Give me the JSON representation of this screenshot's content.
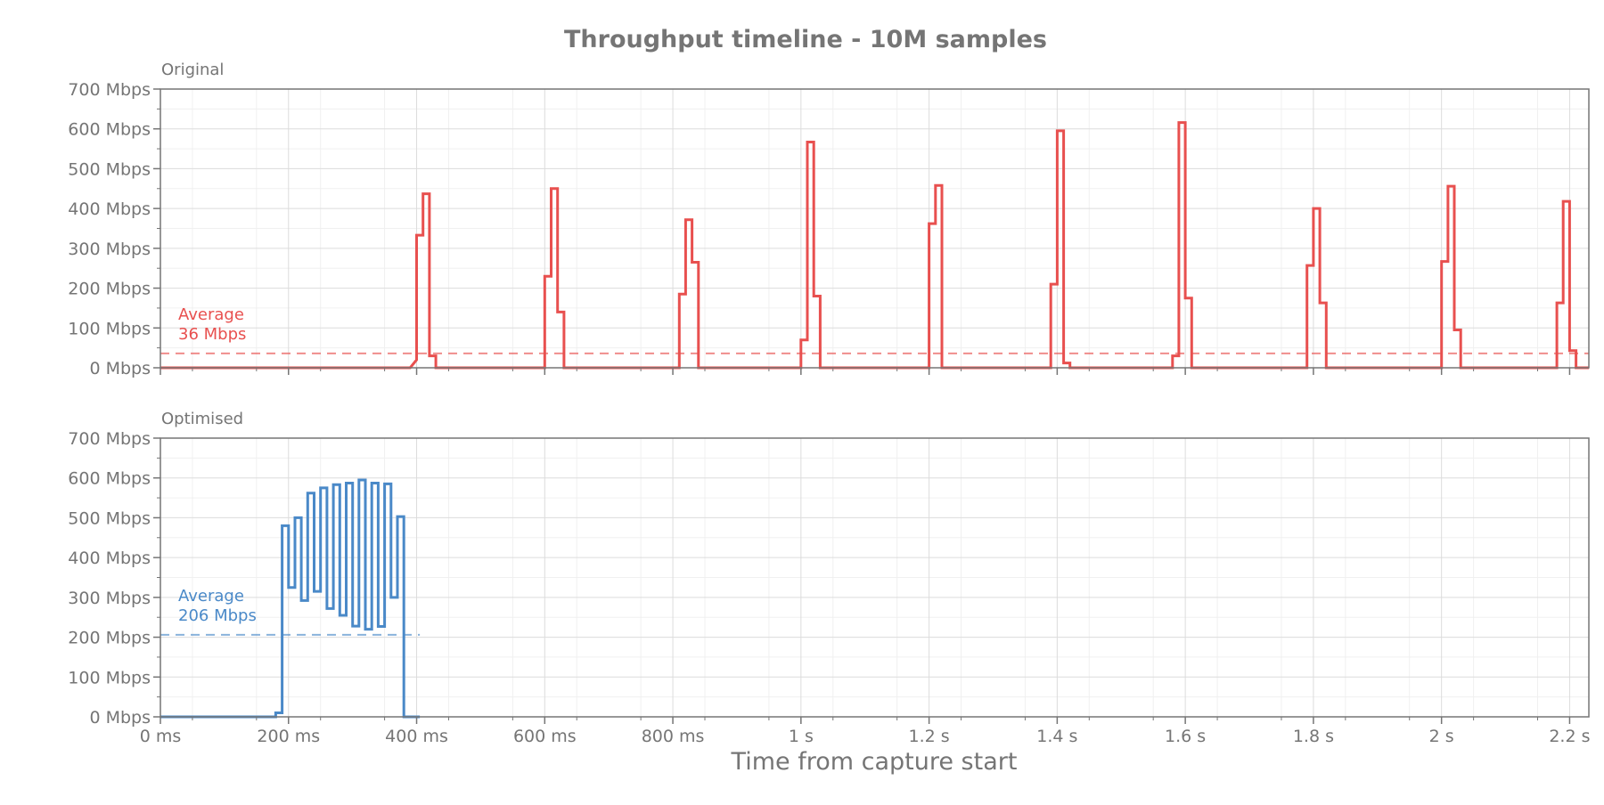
{
  "chart_data": {
    "type": "line",
    "title": "Throughput timeline - 10M samples",
    "xlabel": "Time from capture start",
    "x_units": "ms",
    "xlim": [
      0,
      2230
    ],
    "x_ticks": [
      {
        "value": 0,
        "label": "0 ms"
      },
      {
        "value": 200,
        "label": "200 ms"
      },
      {
        "value": 400,
        "label": "400 ms"
      },
      {
        "value": 600,
        "label": "600 ms"
      },
      {
        "value": 800,
        "label": "800 ms"
      },
      {
        "value": 1000,
        "label": "1 s"
      },
      {
        "value": 1200,
        "label": "1.2 s"
      },
      {
        "value": 1400,
        "label": "1.4 s"
      },
      {
        "value": 1600,
        "label": "1.6 s"
      },
      {
        "value": 1800,
        "label": "1.8 s"
      },
      {
        "value": 2000,
        "label": "2 s"
      },
      {
        "value": 2200,
        "label": "2.2 s"
      }
    ],
    "y_units": "Mbps",
    "ylim": [
      0,
      700
    ],
    "y_ticks": [
      {
        "value": 0,
        "label": "0 Mbps"
      },
      {
        "value": 100,
        "label": "100 Mbps"
      },
      {
        "value": 200,
        "label": "200 Mbps"
      },
      {
        "value": 300,
        "label": "300 Mbps"
      },
      {
        "value": 400,
        "label": "400 Mbps"
      },
      {
        "value": 500,
        "label": "500 Mbps"
      },
      {
        "value": 600,
        "label": "600 Mbps"
      },
      {
        "value": 700,
        "label": "700 Mbps"
      }
    ],
    "grid": true,
    "step": "post",
    "panels": [
      {
        "name": "Original",
        "color": "#e8504f",
        "average": 36,
        "average_label": [
          "Average",
          "36 Mbps"
        ],
        "points": [
          [
            0,
            0
          ],
          [
            390,
            0
          ],
          [
            400,
            20
          ],
          [
            400,
            333
          ],
          [
            410,
            333
          ],
          [
            410,
            437
          ],
          [
            420,
            437
          ],
          [
            420,
            30
          ],
          [
            430,
            30
          ],
          [
            430,
            0
          ],
          [
            600,
            0
          ],
          [
            600,
            230
          ],
          [
            610,
            230
          ],
          [
            610,
            450
          ],
          [
            620,
            450
          ],
          [
            620,
            140
          ],
          [
            630,
            140
          ],
          [
            630,
            0
          ],
          [
            810,
            0
          ],
          [
            810,
            185
          ],
          [
            820,
            185
          ],
          [
            820,
            372
          ],
          [
            830,
            372
          ],
          [
            830,
            265
          ],
          [
            840,
            265
          ],
          [
            840,
            0
          ],
          [
            1000,
            0
          ],
          [
            1000,
            70
          ],
          [
            1010,
            70
          ],
          [
            1010,
            567
          ],
          [
            1020,
            567
          ],
          [
            1020,
            180
          ],
          [
            1030,
            180
          ],
          [
            1030,
            0
          ],
          [
            1200,
            0
          ],
          [
            1200,
            362
          ],
          [
            1210,
            362
          ],
          [
            1210,
            458
          ],
          [
            1220,
            458
          ],
          [
            1220,
            0
          ],
          [
            1390,
            0
          ],
          [
            1390,
            210
          ],
          [
            1400,
            210
          ],
          [
            1400,
            595
          ],
          [
            1410,
            595
          ],
          [
            1410,
            12
          ],
          [
            1420,
            12
          ],
          [
            1420,
            0
          ],
          [
            1580,
            0
          ],
          [
            1580,
            30
          ],
          [
            1590,
            30
          ],
          [
            1590,
            616
          ],
          [
            1600,
            616
          ],
          [
            1600,
            175
          ],
          [
            1610,
            175
          ],
          [
            1610,
            0
          ],
          [
            1790,
            0
          ],
          [
            1790,
            257
          ],
          [
            1800,
            257
          ],
          [
            1800,
            400
          ],
          [
            1810,
            400
          ],
          [
            1810,
            163
          ],
          [
            1820,
            163
          ],
          [
            1820,
            0
          ],
          [
            2000,
            0
          ],
          [
            2000,
            267
          ],
          [
            2010,
            267
          ],
          [
            2010,
            456
          ],
          [
            2020,
            456
          ],
          [
            2020,
            95
          ],
          [
            2030,
            95
          ],
          [
            2030,
            0
          ],
          [
            2180,
            0
          ],
          [
            2180,
            163
          ],
          [
            2190,
            163
          ],
          [
            2190,
            418
          ],
          [
            2200,
            418
          ],
          [
            2200,
            43
          ],
          [
            2210,
            43
          ],
          [
            2210,
            0
          ],
          [
            2230,
            0
          ]
        ]
      },
      {
        "name": "Optimised",
        "color": "#4a89c8",
        "average": 206,
        "average_label": [
          "Average",
          "206 Mbps"
        ],
        "points": [
          [
            0,
            0
          ],
          [
            180,
            0
          ],
          [
            180,
            10
          ],
          [
            190,
            10
          ],
          [
            190,
            480
          ],
          [
            200,
            480
          ],
          [
            200,
            325
          ],
          [
            210,
            325
          ],
          [
            210,
            500
          ],
          [
            220,
            500
          ],
          [
            220,
            292
          ],
          [
            230,
            292
          ],
          [
            230,
            562
          ],
          [
            240,
            562
          ],
          [
            240,
            315
          ],
          [
            250,
            315
          ],
          [
            250,
            575
          ],
          [
            260,
            575
          ],
          [
            260,
            272
          ],
          [
            270,
            272
          ],
          [
            270,
            583
          ],
          [
            280,
            583
          ],
          [
            280,
            255
          ],
          [
            290,
            255
          ],
          [
            290,
            587
          ],
          [
            300,
            587
          ],
          [
            300,
            228
          ],
          [
            310,
            228
          ],
          [
            310,
            595
          ],
          [
            320,
            595
          ],
          [
            320,
            220
          ],
          [
            330,
            220
          ],
          [
            330,
            587
          ],
          [
            340,
            587
          ],
          [
            340,
            227
          ],
          [
            350,
            227
          ],
          [
            350,
            585
          ],
          [
            360,
            585
          ],
          [
            360,
            300
          ],
          [
            370,
            300
          ],
          [
            370,
            503
          ],
          [
            380,
            503
          ],
          [
            380,
            0
          ],
          [
            405,
            0
          ]
        ]
      }
    ]
  }
}
